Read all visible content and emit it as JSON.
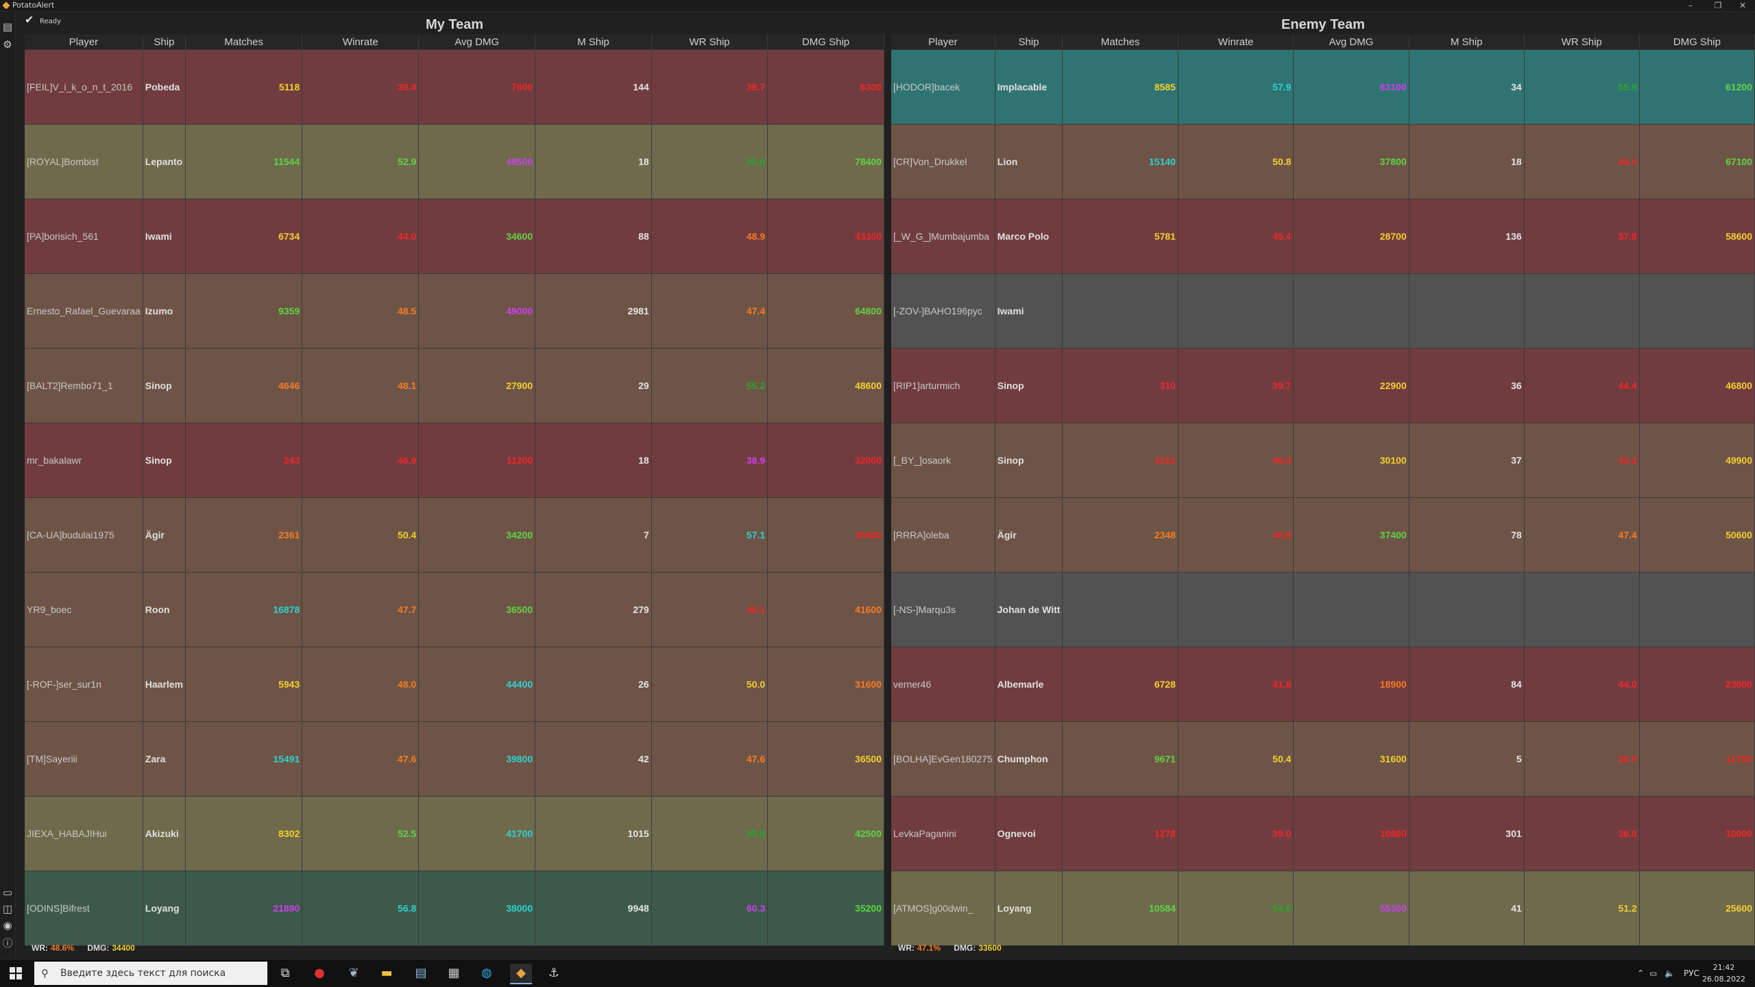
{
  "window": {
    "title": "PotatoAlert",
    "minimize": "–",
    "restore": "❐",
    "close": "✕"
  },
  "status": {
    "text": "Ready"
  },
  "columns": [
    "Player",
    "Ship",
    "Matches",
    "Winrate",
    "Avg DMG",
    "M Ship",
    "WR Ship",
    "DMG Ship"
  ],
  "my_team": {
    "title": "My Team",
    "rows": [
      {
        "bg": "red",
        "player": "[FEIL]V_i_k_o_n_t_2016",
        "ship": "Pobeda",
        "cells": [
          [
            "5118",
            "yellow"
          ],
          [
            "39.4",
            "red"
          ],
          [
            "7600",
            "red"
          ],
          [
            "144",
            "white"
          ],
          [
            "38.7",
            "red"
          ],
          [
            "6300",
            "red"
          ]
        ]
      },
      {
        "bg": "olive",
        "player": "[ROYAL]Bombist",
        "ship": "Lepanto",
        "cells": [
          [
            "11544",
            "lgreen"
          ],
          [
            "52.9",
            "lgreen"
          ],
          [
            "48500",
            "purple"
          ],
          [
            "18",
            "white"
          ],
          [
            "55.6",
            "green"
          ],
          [
            "78400",
            "lgreen"
          ]
        ]
      },
      {
        "bg": "red",
        "player": "[PA]borisich_561",
        "ship": "Iwami",
        "cells": [
          [
            "6734",
            "yellow"
          ],
          [
            "44.0",
            "red"
          ],
          [
            "34600",
            "lgreen"
          ],
          [
            "88",
            "white"
          ],
          [
            "48.9",
            "orange"
          ],
          [
            "43300",
            "red"
          ]
        ]
      },
      {
        "bg": "brown",
        "player": "Ernesto_Rafael_Guevaraa",
        "ship": "Izumo",
        "cells": [
          [
            "9359",
            "lgreen"
          ],
          [
            "48.5",
            "orange"
          ],
          [
            "49000",
            "purple"
          ],
          [
            "2981",
            "white"
          ],
          [
            "47.4",
            "orange"
          ],
          [
            "64800",
            "lgreen"
          ]
        ]
      },
      {
        "bg": "brown",
        "player": "[BALT2]Rembo71_1",
        "ship": "Sinop",
        "cells": [
          [
            "4646",
            "orange"
          ],
          [
            "48.1",
            "orange"
          ],
          [
            "27900",
            "yellow"
          ],
          [
            "29",
            "white"
          ],
          [
            "55.2",
            "green"
          ],
          [
            "48600",
            "yellow"
          ]
        ]
      },
      {
        "bg": "red",
        "player": "mr_bakalawr",
        "ship": "Sinop",
        "cells": [
          [
            "243",
            "red"
          ],
          [
            "46.9",
            "red"
          ],
          [
            "11200",
            "red"
          ],
          [
            "18",
            "white"
          ],
          [
            "38.9",
            "purple"
          ],
          [
            "32000",
            "red"
          ]
        ]
      },
      {
        "bg": "brown",
        "player": "[CA-UA]budulai1975",
        "ship": "Ägir",
        "cells": [
          [
            "2361",
            "orange"
          ],
          [
            "50.4",
            "yellow"
          ],
          [
            "34200",
            "lgreen"
          ],
          [
            "7",
            "white"
          ],
          [
            "57.1",
            "cyan"
          ],
          [
            "35500",
            "red"
          ]
        ]
      },
      {
        "bg": "brown",
        "player": "YR9_boec",
        "ship": "Roon",
        "cells": [
          [
            "16878",
            "cyan"
          ],
          [
            "47.7",
            "orange"
          ],
          [
            "36500",
            "lgreen"
          ],
          [
            "279",
            "white"
          ],
          [
            "40.1",
            "red"
          ],
          [
            "41600",
            "orange"
          ]
        ]
      },
      {
        "bg": "brown",
        "player": "[-ROF-]ser_sur1n",
        "ship": "Haarlem",
        "cells": [
          [
            "5943",
            "yellow"
          ],
          [
            "48.0",
            "orange"
          ],
          [
            "44400",
            "cyan"
          ],
          [
            "26",
            "white"
          ],
          [
            "50.0",
            "yellow"
          ],
          [
            "31600",
            "orange"
          ]
        ]
      },
      {
        "bg": "brown",
        "player": "[TM]Sayeriii",
        "ship": "Zara",
        "cells": [
          [
            "15491",
            "cyan"
          ],
          [
            "47.6",
            "orange"
          ],
          [
            "39800",
            "cyan"
          ],
          [
            "42",
            "white"
          ],
          [
            "47.6",
            "orange"
          ],
          [
            "36500",
            "yellow"
          ]
        ]
      },
      {
        "bg": "olive",
        "player": "JIEXA_HABAJIHui",
        "ship": "Akizuki",
        "cells": [
          [
            "8302",
            "yellow"
          ],
          [
            "52.5",
            "lgreen"
          ],
          [
            "41700",
            "cyan"
          ],
          [
            "1015",
            "white"
          ],
          [
            "55.8",
            "green"
          ],
          [
            "42500",
            "lgreen"
          ]
        ]
      },
      {
        "bg": "green",
        "player": "[ODINS]Bifrest",
        "ship": "Loyang",
        "cells": [
          [
            "21890",
            "purple"
          ],
          [
            "56.8",
            "cyan"
          ],
          [
            "38000",
            "cyan"
          ],
          [
            "9948",
            "white"
          ],
          [
            "60.3",
            "purple"
          ],
          [
            "35200",
            "lgreen"
          ]
        ]
      }
    ],
    "summary": {
      "wr_label": "WR:",
      "wr": "48.6%",
      "dmg_label": "DMG:",
      "dmg": "34400"
    }
  },
  "enemy_team": {
    "title": "Enemy Team",
    "rows": [
      {
        "bg": "teal",
        "player": "[HODOR]bacek",
        "ship": "Implacable",
        "cells": [
          [
            "8585",
            "yellow"
          ],
          [
            "57.9",
            "cyan"
          ],
          [
            "63100",
            "purple"
          ],
          [
            "34",
            "white"
          ],
          [
            "55.9",
            "green"
          ],
          [
            "61200",
            "lgreen"
          ]
        ]
      },
      {
        "bg": "brown",
        "player": "[CR]Von_Drukkel",
        "ship": "Lion",
        "cells": [
          [
            "15140",
            "cyan"
          ],
          [
            "50.8",
            "yellow"
          ],
          [
            "37800",
            "lgreen"
          ],
          [
            "18",
            "white"
          ],
          [
            "44.4",
            "red"
          ],
          [
            "67100",
            "lgreen"
          ]
        ]
      },
      {
        "bg": "red",
        "player": "[_W_G_]Mumbajumba",
        "ship": "Marco Polo",
        "cells": [
          [
            "5781",
            "yellow"
          ],
          [
            "45.4",
            "red"
          ],
          [
            "28700",
            "yellow"
          ],
          [
            "136",
            "white"
          ],
          [
            "37.8",
            "red"
          ],
          [
            "58600",
            "yellow"
          ]
        ]
      },
      {
        "bg": "gray",
        "player": "[-ZOV-]BAHO196pyc",
        "ship": "Iwami",
        "cells": [
          [
            "",
            ""
          ],
          [
            "",
            ""
          ],
          [
            "",
            ""
          ],
          [
            "",
            ""
          ],
          [
            "",
            ""
          ],
          [
            "",
            ""
          ]
        ]
      },
      {
        "bg": "red",
        "player": "[RIP1]arturmich",
        "ship": "Sinop",
        "cells": [
          [
            "310",
            "red"
          ],
          [
            "39.7",
            "red"
          ],
          [
            "22900",
            "yellow"
          ],
          [
            "36",
            "white"
          ],
          [
            "44.4",
            "red"
          ],
          [
            "46800",
            "yellow"
          ]
        ]
      },
      {
        "bg": "brown",
        "player": "[_BY_]osaork",
        "ship": "Sinop",
        "cells": [
          [
            "1012",
            "red"
          ],
          [
            "46.4",
            "red"
          ],
          [
            "30100",
            "yellow"
          ],
          [
            "37",
            "white"
          ],
          [
            "43.2",
            "red"
          ],
          [
            "49900",
            "yellow"
          ]
        ]
      },
      {
        "bg": "brown",
        "player": "[RRRA]oleba",
        "ship": "Ägir",
        "cells": [
          [
            "2348",
            "orange"
          ],
          [
            "46.9",
            "red"
          ],
          [
            "37400",
            "lgreen"
          ],
          [
            "78",
            "white"
          ],
          [
            "47.4",
            "orange"
          ],
          [
            "50600",
            "yellow"
          ]
        ]
      },
      {
        "bg": "gray",
        "player": "[-NS-]Marqu3s",
        "ship": "Johan de Witt",
        "cells": [
          [
            "",
            ""
          ],
          [
            "",
            ""
          ],
          [
            "",
            ""
          ],
          [
            "",
            ""
          ],
          [
            "",
            ""
          ],
          [
            "",
            ""
          ]
        ]
      },
      {
        "bg": "red",
        "player": "verner46",
        "ship": "Albemarle",
        "cells": [
          [
            "6728",
            "yellow"
          ],
          [
            "41.8",
            "red"
          ],
          [
            "18900",
            "orange"
          ],
          [
            "84",
            "white"
          ],
          [
            "44.0",
            "red"
          ],
          [
            "23000",
            "red"
          ]
        ]
      },
      {
        "bg": "brown",
        "player": "[BOLHA]EvGen180275",
        "ship": "Chumphon",
        "cells": [
          [
            "9671",
            "lgreen"
          ],
          [
            "50.4",
            "yellow"
          ],
          [
            "31600",
            "yellow"
          ],
          [
            "5",
            "white"
          ],
          [
            "20.0",
            "red"
          ],
          [
            "11700",
            "red"
          ]
        ]
      },
      {
        "bg": "red",
        "player": "LevkaPaganini",
        "ship": "Ognevoi",
        "cells": [
          [
            "1278",
            "red"
          ],
          [
            "39.0",
            "red"
          ],
          [
            "10800",
            "red"
          ],
          [
            "301",
            "white"
          ],
          [
            "38.0",
            "red"
          ],
          [
            "10000",
            "red"
          ]
        ]
      },
      {
        "bg": "olive",
        "player": "[ATMOS]g00dwin_",
        "ship": "Loyang",
        "cells": [
          [
            "10584",
            "lgreen"
          ],
          [
            "54.6",
            "green"
          ],
          [
            "55300",
            "purple"
          ],
          [
            "41",
            "white"
          ],
          [
            "51.2",
            "yellow"
          ],
          [
            "25600",
            "yellow"
          ]
        ]
      }
    ],
    "summary": {
      "wr_label": "WR:",
      "wr": "47.1%",
      "dmg_label": "DMG:",
      "dmg": "33600"
    }
  },
  "taskbar": {
    "search_placeholder": "Введите здесь текст для поиска",
    "lang": "РУС",
    "time": "21:42",
    "date": "26.08.2022"
  },
  "colors": {
    "bg_red": "#713c3f",
    "bg_olive": "#6e6a4b",
    "bg_brown": "#6e5446",
    "bg_teal": "#2f7472",
    "bg_green": "#3c5a47",
    "bg_gray": "#525252"
  }
}
